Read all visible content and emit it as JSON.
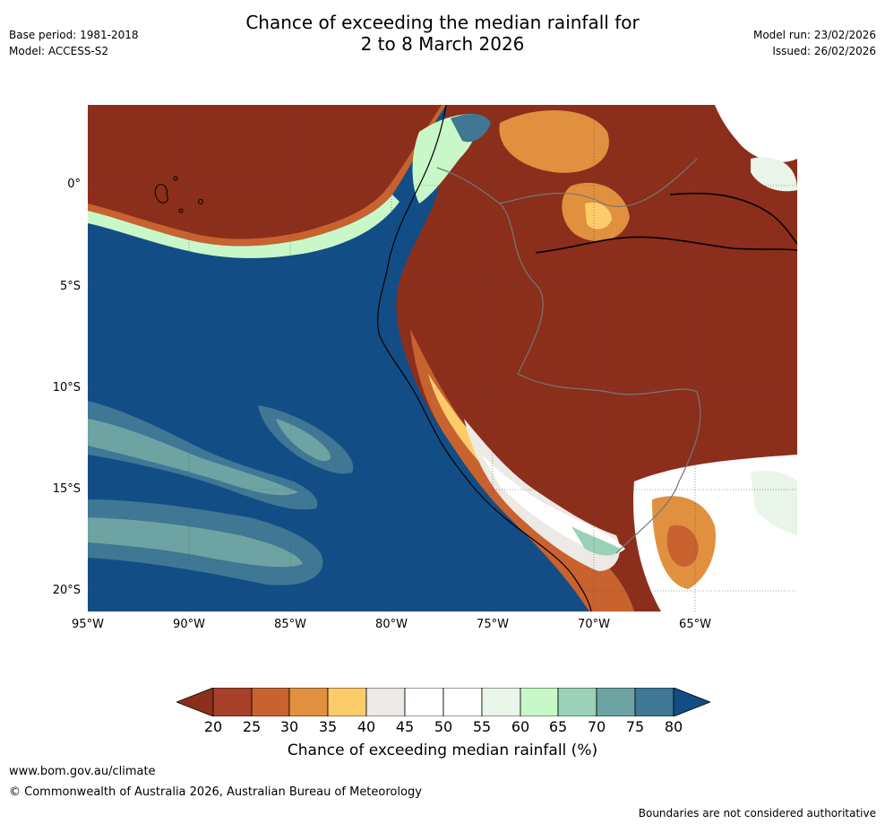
{
  "header": {
    "title_line1": "Chance of exceeding the median rainfall for",
    "title_line2": "2 to 8 March 2026",
    "base_period": "Base period: 1981-2018",
    "model": "Model: ACCESS-S2",
    "model_run": "Model run: 23/02/2026",
    "issued": "Issued: 26/02/2026"
  },
  "map": {
    "lat_labels": [
      "0°",
      "5°S",
      "10°S",
      "15°S",
      "20°S"
    ],
    "lon_labels": [
      "95°W",
      "90°W",
      "85°W",
      "80°W",
      "75°W",
      "70°W",
      "65°W"
    ],
    "colors": {
      "below20": "#8c2e1c",
      "c20_25": "#a6402a",
      "c25_30": "#c8622f",
      "c30_35": "#e0903e",
      "c35_40": "#fdcc6a",
      "c40_45": "#ede9e4",
      "c45_50": "#ffffff",
      "c50_55": "#ffffff",
      "c55_60": "#e8f5e8",
      "c60_65": "#c8f8c8",
      "c65_70": "#9bd1b8",
      "c70_75": "#6ea3a3",
      "c75_80": "#3f7795",
      "above80": "#134d86"
    }
  },
  "colorbar": {
    "ticks": [
      "20",
      "25",
      "30",
      "35",
      "40",
      "45",
      "50",
      "55",
      "60",
      "65",
      "70",
      "75",
      "80"
    ],
    "label": "Chance of exceeding median rainfall (%)"
  },
  "footer": {
    "url": "www.bom.gov.au/climate",
    "copyright": "© Commonwealth of Australia 2026, Australian Bureau of Meteorology",
    "note": "Boundaries are not considered authoritative"
  }
}
